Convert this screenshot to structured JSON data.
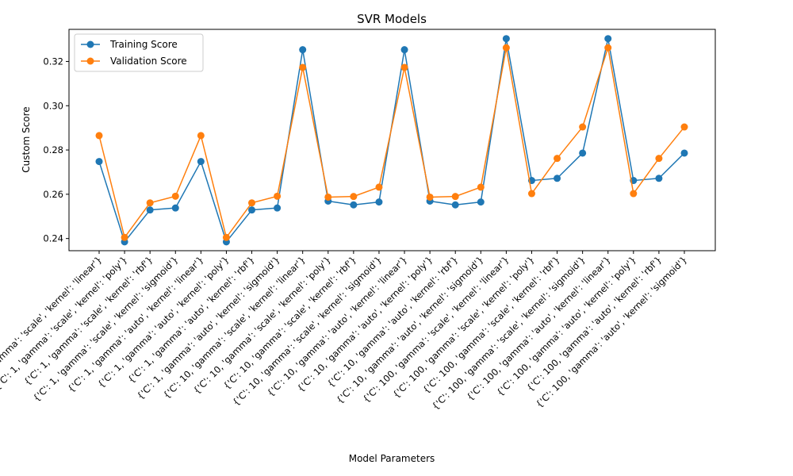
{
  "chart_data": {
    "type": "line",
    "title": "SVR Models",
    "xlabel": "Model Parameters",
    "ylabel": "Custom Score",
    "ylim": [
      0.2345,
      0.3345
    ],
    "yticks": [
      "0.24",
      "0.26",
      "0.28",
      "0.30",
      "0.32"
    ],
    "grid": false,
    "legend_position": "top-left",
    "categories": [
      "{'C': 1, 'gamma': 'scale', 'kernel': 'linear'}",
      "{'C': 1, 'gamma': 'scale', 'kernel': 'poly'}",
      "{'C': 1, 'gamma': 'scale', 'kernel': 'rbf'}",
      "{'C': 1, 'gamma': 'scale', 'kernel': 'sigmoid'}",
      "{'C': 1, 'gamma': 'auto', 'kernel': 'linear'}",
      "{'C': 1, 'gamma': 'auto', 'kernel': 'poly'}",
      "{'C': 1, 'gamma': 'auto', 'kernel': 'rbf'}",
      "{'C': 1, 'gamma': 'auto', 'kernel': 'sigmoid'}",
      "{'C': 10, 'gamma': 'scale', 'kernel': 'linear'}",
      "{'C': 10, 'gamma': 'scale', 'kernel': 'poly'}",
      "{'C': 10, 'gamma': 'scale', 'kernel': 'rbf'}",
      "{'C': 10, 'gamma': 'scale', 'kernel': 'sigmoid'}",
      "{'C': 10, 'gamma': 'auto', 'kernel': 'linear'}",
      "{'C': 10, 'gamma': 'auto', 'kernel': 'poly'}",
      "{'C': 10, 'gamma': 'auto', 'kernel': 'rbf'}",
      "{'C': 10, 'gamma': 'auto', 'kernel': 'sigmoid'}",
      "{'C': 100, 'gamma': 'scale', 'kernel': 'linear'}",
      "{'C': 100, 'gamma': 'scale', 'kernel': 'poly'}",
      "{'C': 100, 'gamma': 'scale', 'kernel': 'rbf'}",
      "{'C': 100, 'gamma': 'scale', 'kernel': 'sigmoid'}",
      "{'C': 100, 'gamma': 'auto', 'kernel': 'linear'}",
      "{'C': 100, 'gamma': 'auto', 'kernel': 'poly'}",
      "{'C': 100, 'gamma': 'auto', 'kernel': 'rbf'}",
      "{'C': 100, 'gamma': 'auto', 'kernel': 'sigmoid'}"
    ],
    "series": [
      {
        "name": "Training Score",
        "color": "#1f77b4",
        "values": [
          0.2748,
          0.2385,
          0.2529,
          0.2538,
          0.2748,
          0.2385,
          0.2529,
          0.2538,
          0.3253,
          0.2569,
          0.2552,
          0.2565,
          0.3253,
          0.2569,
          0.2552,
          0.2565,
          0.3303,
          0.2662,
          0.2672,
          0.2786,
          0.3303,
          0.2662,
          0.2672,
          0.2786
        ]
      },
      {
        "name": "Validation Score",
        "color": "#ff7f0e",
        "values": [
          0.2865,
          0.2405,
          0.2561,
          0.2591,
          0.2865,
          0.2405,
          0.2561,
          0.2591,
          0.3173,
          0.2587,
          0.259,
          0.2632,
          0.3173,
          0.2587,
          0.259,
          0.2632,
          0.3262,
          0.2603,
          0.2762,
          0.2904,
          0.3262,
          0.2603,
          0.2762,
          0.2904
        ]
      }
    ]
  }
}
